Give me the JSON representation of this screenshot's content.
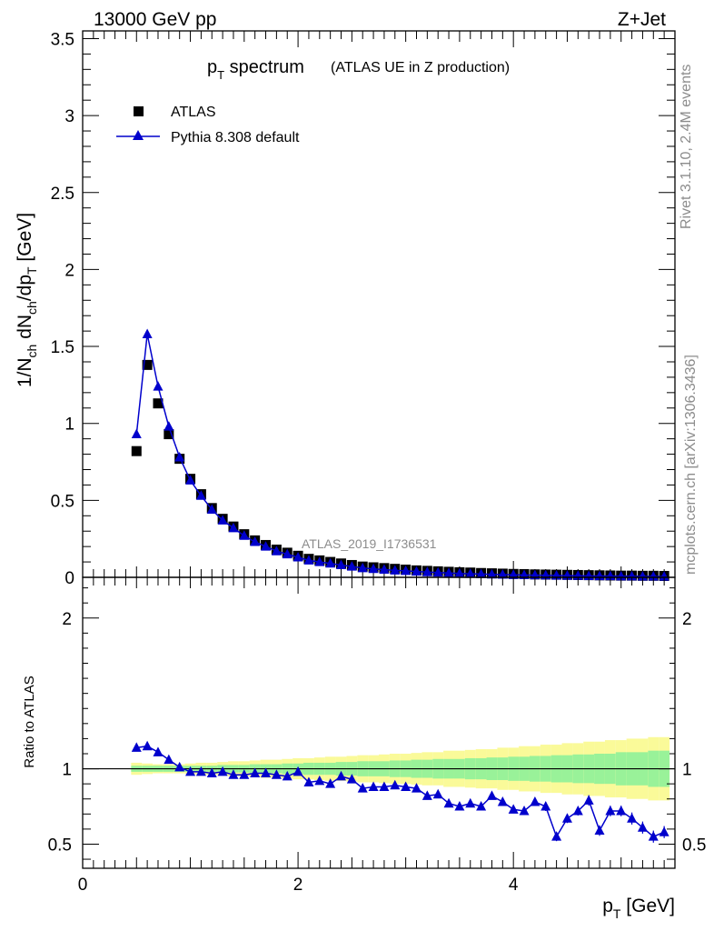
{
  "header": {
    "left": "13000 GeV pp",
    "right": "Z+Jet"
  },
  "side_text": {
    "top": "Rivet 3.1.10,  2.4M events",
    "bottom": "mcplots.cern.ch [arXiv:1306.3436]"
  },
  "watermark": "ATLAS_2019_I1736531",
  "colors": {
    "mc": "#0000cc",
    "band_inner": "#99f299",
    "band_outer": "#fafa99",
    "data": "#000000",
    "annotation_gray": "#8c8c8c"
  },
  "chart_data": [
    {
      "type": "scatter",
      "title_main": "p",
      "title_sub": "T",
      "title_rest": " spectrum",
      "title_paren": "(ATLAS UE in Z production)",
      "ylabel": "1/N_ch dN_ch/dp_T [GeV]",
      "xlim": [
        0,
        5.5
      ],
      "ylim": [
        0,
        3.55
      ],
      "yticks": [
        "0",
        "0.5",
        "1",
        "1.5",
        "2",
        "2.5",
        "3",
        "3.5"
      ],
      "legend_position": "top-left",
      "series": [
        {
          "name": "ATLAS",
          "marker": "square",
          "x": [
            0.5,
            0.6,
            0.7,
            0.8,
            0.9,
            1.0,
            1.1,
            1.2,
            1.3,
            1.4,
            1.5,
            1.6,
            1.7,
            1.8,
            1.9,
            2.0,
            2.1,
            2.2,
            2.3,
            2.4,
            2.5,
            2.6,
            2.7,
            2.8,
            2.9,
            3.0,
            3.1,
            3.2,
            3.3,
            3.4,
            3.5,
            3.6,
            3.7,
            3.8,
            3.9,
            4.0,
            4.1,
            4.2,
            4.3,
            4.4,
            4.5,
            4.6,
            4.7,
            4.8,
            4.9,
            5.0,
            5.1,
            5.2,
            5.3,
            5.4
          ],
          "y": [
            0.82,
            1.38,
            1.13,
            0.93,
            0.77,
            0.64,
            0.54,
            0.45,
            0.38,
            0.33,
            0.28,
            0.24,
            0.21,
            0.18,
            0.16,
            0.14,
            0.12,
            0.11,
            0.1,
            0.09,
            0.08,
            0.07,
            0.065,
            0.06,
            0.055,
            0.05,
            0.045,
            0.042,
            0.039,
            0.036,
            0.033,
            0.031,
            0.028,
            0.026,
            0.024,
            0.022,
            0.021,
            0.019,
            0.018,
            0.017,
            0.016,
            0.015,
            0.014,
            0.013,
            0.012,
            0.011,
            0.011,
            0.01,
            0.01,
            0.009
          ]
        },
        {
          "name": "Pythia 8.308 default",
          "marker": "triangle-line",
          "x": [
            0.5,
            0.6,
            0.7,
            0.8,
            0.9,
            1.0,
            1.1,
            1.2,
            1.3,
            1.4,
            1.5,
            1.6,
            1.7,
            1.8,
            1.9,
            2.0,
            2.1,
            2.2,
            2.3,
            2.4,
            2.5,
            2.6,
            2.7,
            2.8,
            2.9,
            3.0,
            3.1,
            3.2,
            3.3,
            3.4,
            3.5,
            3.6,
            3.7,
            3.8,
            3.9,
            4.0,
            4.1,
            4.2,
            4.3,
            4.4,
            4.5,
            4.6,
            4.7,
            4.8,
            4.9,
            5.0,
            5.1,
            5.2,
            5.3,
            5.4
          ],
          "y": [
            0.93,
            1.58,
            1.24,
            0.98,
            0.78,
            0.63,
            0.53,
            0.44,
            0.37,
            0.32,
            0.27,
            0.23,
            0.2,
            0.17,
            0.15,
            0.13,
            0.11,
            0.1,
            0.09,
            0.08,
            0.07,
            0.06,
            0.055,
            0.05,
            0.045,
            0.042,
            0.038,
            0.034,
            0.031,
            0.028,
            0.025,
            0.023,
            0.021,
            0.019,
            0.018,
            0.016,
            0.015,
            0.014,
            0.013,
            0.012,
            0.011,
            0.01,
            0.009,
            0.008,
            0.008,
            0.007,
            0.007,
            0.006,
            0.006,
            0.005
          ]
        }
      ]
    },
    {
      "type": "line",
      "ylabel": "Ratio to ATLAS",
      "xlabel_main": "p",
      "xlabel_sub": "T",
      "xlabel_rest": " [GeV]",
      "xlim": [
        0,
        5.5
      ],
      "ylim": [
        0.34,
        2.27
      ],
      "xticks": [
        "0",
        "2",
        "4"
      ],
      "yticks": [
        "0.5",
        "1",
        "2"
      ],
      "reference_line": 1,
      "series": [
        {
          "name": "Pythia 8.308 default",
          "x": [
            0.5,
            0.6,
            0.7,
            0.8,
            0.9,
            1.0,
            1.1,
            1.2,
            1.3,
            1.4,
            1.5,
            1.6,
            1.7,
            1.8,
            1.9,
            2.0,
            2.1,
            2.2,
            2.3,
            2.4,
            2.5,
            2.6,
            2.7,
            2.8,
            2.9,
            3.0,
            3.1,
            3.2,
            3.3,
            3.4,
            3.5,
            3.6,
            3.7,
            3.8,
            3.9,
            4.0,
            4.1,
            4.2,
            4.3,
            4.4,
            4.5,
            4.6,
            4.7,
            4.8,
            4.9,
            5.0,
            5.1,
            5.2,
            5.3,
            5.4
          ],
          "y": [
            1.14,
            1.15,
            1.11,
            1.06,
            1.01,
            0.98,
            0.98,
            0.97,
            0.98,
            0.96,
            0.96,
            0.97,
            0.97,
            0.96,
            0.95,
            0.98,
            0.91,
            0.92,
            0.9,
            0.95,
            0.93,
            0.87,
            0.88,
            0.88,
            0.89,
            0.88,
            0.87,
            0.82,
            0.83,
            0.77,
            0.75,
            0.77,
            0.75,
            0.82,
            0.78,
            0.73,
            0.72,
            0.78,
            0.75,
            0.55,
            0.67,
            0.72,
            0.79,
            0.59,
            0.72,
            0.72,
            0.67,
            0.61,
            0.55,
            0.58
          ],
          "err": [
            0.01,
            0.01,
            0.01,
            0.01,
            0.01,
            0.01,
            0.01,
            0.01,
            0.01,
            0.01,
            0.01,
            0.01,
            0.01,
            0.01,
            0.01,
            0.01,
            0.01,
            0.01,
            0.01,
            0.015,
            0.015,
            0.015,
            0.015,
            0.015,
            0.015,
            0.015,
            0.015,
            0.02,
            0.02,
            0.02,
            0.02,
            0.02,
            0.02,
            0.02,
            0.025,
            0.025,
            0.025,
            0.025,
            0.03,
            0.03,
            0.03,
            0.03,
            0.035,
            0.035,
            0.035,
            0.035,
            0.04,
            0.04,
            0.04,
            0.04
          ]
        }
      ],
      "band_inner_halfwidth": [
        0.02,
        0.02,
        0.02,
        0.02,
        0.02,
        0.02,
        0.02,
        0.02,
        0.025,
        0.025,
        0.025,
        0.03,
        0.03,
        0.03,
        0.035,
        0.035,
        0.04,
        0.04,
        0.04,
        0.045,
        0.045,
        0.05,
        0.05,
        0.05,
        0.055,
        0.055,
        0.06,
        0.06,
        0.065,
        0.065,
        0.065,
        0.07,
        0.07,
        0.075,
        0.075,
        0.08,
        0.08,
        0.085,
        0.085,
        0.09,
        0.09,
        0.095,
        0.095,
        0.1,
        0.1,
        0.11,
        0.11,
        0.11,
        0.12,
        0.12
      ],
      "band_outer_halfwidth": [
        0.04,
        0.035,
        0.03,
        0.03,
        0.03,
        0.035,
        0.04,
        0.04,
        0.045,
        0.05,
        0.05,
        0.055,
        0.06,
        0.06,
        0.065,
        0.07,
        0.07,
        0.075,
        0.08,
        0.08,
        0.085,
        0.09,
        0.09,
        0.095,
        0.1,
        0.1,
        0.105,
        0.11,
        0.11,
        0.12,
        0.12,
        0.125,
        0.13,
        0.13,
        0.14,
        0.14,
        0.15,
        0.15,
        0.16,
        0.16,
        0.17,
        0.17,
        0.18,
        0.18,
        0.19,
        0.19,
        0.2,
        0.2,
        0.21,
        0.21
      ]
    }
  ]
}
